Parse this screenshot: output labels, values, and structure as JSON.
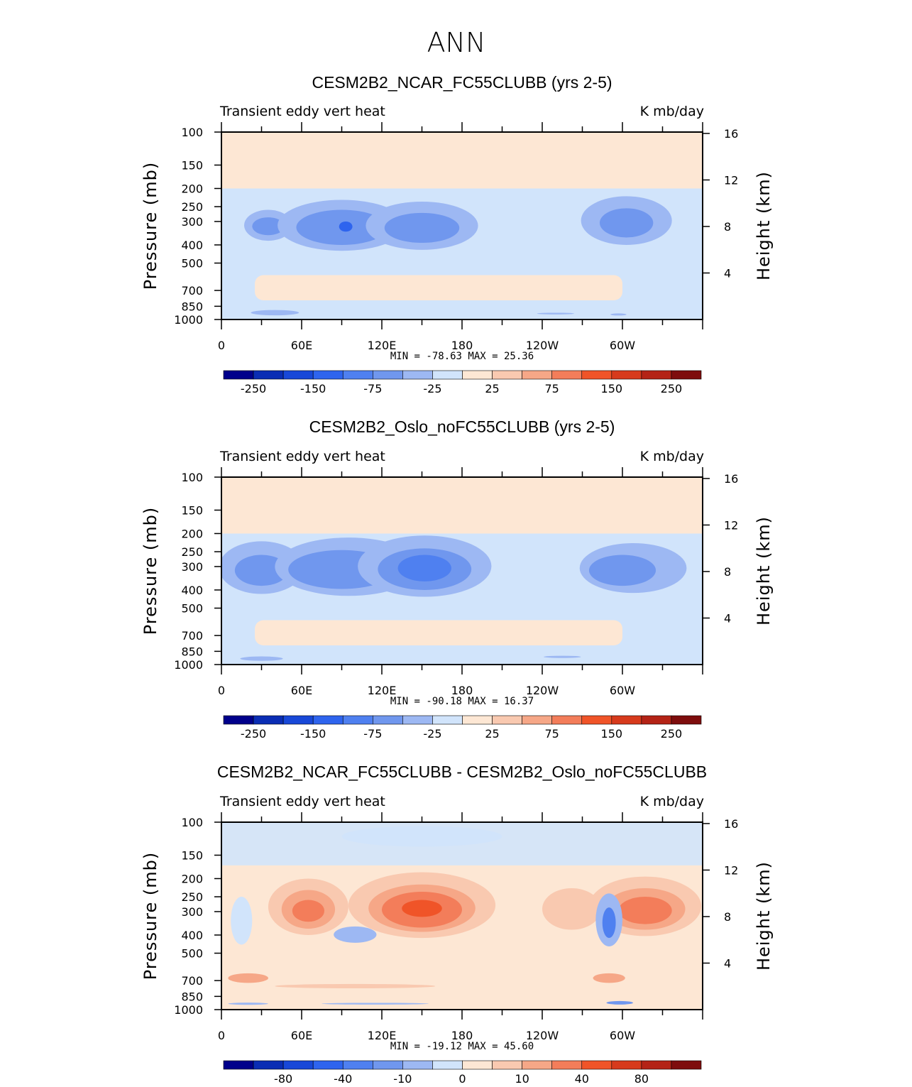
{
  "figure_title": "ANN",
  "colors": {
    "scale": [
      "#00008b",
      "#0a2db4",
      "#1848d8",
      "#2e64ee",
      "#4f80f0",
      "#7097ee",
      "#9db8f3",
      "#d1e4fb",
      "#fde7d4",
      "#f9c9b0",
      "#f6a787",
      "#f37d5a",
      "#f05428",
      "#d73a1c",
      "#b42316",
      "#7e0d0d"
    ]
  },
  "chart_data": [
    {
      "type": "contour",
      "title": "CESM2B2_NCAR_FC55CLUBB (yrs 2-5)",
      "left_label": "Transient eddy vert heat",
      "right_label": "K mb/day",
      "ylabel": "Pressure (mb)",
      "ylabel2": "Height (km)",
      "x_ticks": [
        "0",
        "60E",
        "120E",
        "180",
        "120W",
        "60W"
      ],
      "x_range": [
        0,
        360
      ],
      "y_ticks": [
        "100",
        "150",
        "200",
        "250",
        "300",
        "400",
        "500",
        "700",
        "850",
        "1000"
      ],
      "y_range": [
        1000,
        100
      ],
      "height_ticks": [
        "16",
        "12",
        "8",
        "4"
      ],
      "stats": "MIN = -78.63   MAX =  25.36",
      "colorbar_labels": [
        "-250",
        "-150",
        "-75",
        "-25",
        "25",
        "75",
        "150",
        "250"
      ],
      "levels_approx": [
        -250,
        -200,
        -150,
        -100,
        -75,
        -50,
        -25,
        0,
        25,
        50,
        75,
        100,
        150,
        200,
        250
      ],
      "background_level": 8,
      "features": [
        {
          "lon": 35,
          "p": 320,
          "w": 28,
          "h": 190,
          "level": 7
        },
        {
          "lon": 35,
          "p": 320,
          "w": 18,
          "h": 120,
          "level": 6
        },
        {
          "lon": 35,
          "p": 320,
          "w": 12,
          "h": 70,
          "level": 5
        },
        {
          "lon": 90,
          "p": 330,
          "w": 48,
          "h": 200,
          "level": 6
        },
        {
          "lon": 90,
          "p": 330,
          "w": 34,
          "h": 140,
          "level": 5
        },
        {
          "lon": 93,
          "p": 320,
          "w": 5,
          "h": 40,
          "level": 3
        },
        {
          "lon": 150,
          "p": 330,
          "w": 42,
          "h": 190,
          "level": 6
        },
        {
          "lon": 150,
          "p": 330,
          "w": 28,
          "h": 120,
          "level": 5
        },
        {
          "lon": 303,
          "p": 310,
          "w": 34,
          "h": 180,
          "level": 6
        },
        {
          "lon": 303,
          "p": 310,
          "w": 20,
          "h": 110,
          "level": 5
        },
        {
          "lon": 40,
          "p": 920,
          "w": 18,
          "h": 60,
          "level": 6
        },
        {
          "lon": 250,
          "p": 930,
          "w": 14,
          "h": 20,
          "level": 6
        },
        {
          "lon": 297,
          "p": 940,
          "w": 6,
          "h": 25,
          "level": 6
        }
      ]
    },
    {
      "type": "contour",
      "title": "CESM2B2_Oslo_noFC55CLUBB (yrs 2-5)",
      "left_label": "Transient eddy vert heat",
      "right_label": "K mb/day",
      "ylabel": "Pressure (mb)",
      "ylabel2": "Height (km)",
      "x_ticks": [
        "0",
        "60E",
        "120E",
        "180",
        "120W",
        "60W"
      ],
      "x_range": [
        0,
        360
      ],
      "y_ticks": [
        "100",
        "150",
        "200",
        "250",
        "300",
        "400",
        "500",
        "700",
        "850",
        "1000"
      ],
      "y_range": [
        1000,
        100
      ],
      "height_ticks": [
        "16",
        "12",
        "8",
        "4"
      ],
      "stats": "MIN = -90.18   MAX =  16.37",
      "colorbar_labels": [
        "-250",
        "-150",
        "-75",
        "-25",
        "25",
        "75",
        "150",
        "250"
      ],
      "levels_approx": [
        -250,
        -200,
        -150,
        -100,
        -75,
        -50,
        -25,
        0,
        25,
        50,
        75,
        100,
        150,
        200,
        250
      ],
      "background_level": 8,
      "features": [
        {
          "lon": 30,
          "p": 320,
          "w": 32,
          "h": 200,
          "level": 6
        },
        {
          "lon": 30,
          "p": 320,
          "w": 20,
          "h": 120,
          "level": 5
        },
        {
          "lon": 95,
          "p": 320,
          "w": 55,
          "h": 220,
          "level": 6
        },
        {
          "lon": 90,
          "p": 320,
          "w": 40,
          "h": 150,
          "level": 5
        },
        {
          "lon": 152,
          "p": 320,
          "w": 50,
          "h": 230,
          "level": 6
        },
        {
          "lon": 152,
          "p": 320,
          "w": 35,
          "h": 160,
          "level": 5
        },
        {
          "lon": 152,
          "p": 310,
          "w": 20,
          "h": 100,
          "level": 4
        },
        {
          "lon": 308,
          "p": 320,
          "w": 40,
          "h": 190,
          "level": 6
        },
        {
          "lon": 300,
          "p": 320,
          "w": 25,
          "h": 120,
          "level": 5
        },
        {
          "lon": 30,
          "p": 930,
          "w": 16,
          "h": 50,
          "level": 6
        },
        {
          "lon": 255,
          "p": 910,
          "w": 14,
          "h": 25,
          "level": 6
        }
      ]
    },
    {
      "type": "contour",
      "title": "CESM2B2_NCAR_FC55CLUBB - CESM2B2_Oslo_noFC55CLUBB",
      "left_label": "Transient eddy vert heat",
      "right_label": "K mb/day",
      "ylabel": "Pressure (mb)",
      "ylabel2": "Height (km)",
      "x_ticks": [
        "0",
        "60E",
        "120E",
        "180",
        "120W",
        "60W"
      ],
      "x_range": [
        0,
        360
      ],
      "y_ticks": [
        "100",
        "150",
        "200",
        "250",
        "300",
        "400",
        "500",
        "700",
        "850",
        "1000"
      ],
      "y_range": [
        1000,
        100
      ],
      "height_ticks": [
        "16",
        "12",
        "8",
        "4"
      ],
      "stats": "MIN = -19.12   MAX =  45.60",
      "colorbar_labels": [
        "-80",
        "-40",
        "-10",
        "0",
        "10",
        "40",
        "80"
      ],
      "levels_approx": [
        -100,
        -80,
        -60,
        -40,
        -20,
        -10,
        -5,
        0,
        5,
        10,
        20,
        40,
        60,
        80,
        100
      ],
      "background_level": 8,
      "features": [
        {
          "lon": 150,
          "p": 300,
          "w": 55,
          "h": 230,
          "level": 9
        },
        {
          "lon": 150,
          "p": 300,
          "w": 40,
          "h": 170,
          "level": 10
        },
        {
          "lon": 150,
          "p": 300,
          "w": 30,
          "h": 130,
          "level": 11
        },
        {
          "lon": 150,
          "p": 290,
          "w": 15,
          "h": 60,
          "level": 12
        },
        {
          "lon": 65,
          "p": 300,
          "w": 30,
          "h": 200,
          "level": 9
        },
        {
          "lon": 65,
          "p": 300,
          "w": 20,
          "h": 140,
          "level": 10
        },
        {
          "lon": 65,
          "p": 300,
          "w": 12,
          "h": 80,
          "level": 11
        },
        {
          "lon": 317,
          "p": 300,
          "w": 42,
          "h": 210,
          "level": 9
        },
        {
          "lon": 317,
          "p": 300,
          "w": 30,
          "h": 150,
          "level": 10
        },
        {
          "lon": 317,
          "p": 300,
          "w": 20,
          "h": 100,
          "level": 11
        },
        {
          "lon": 262,
          "p": 300,
          "w": 22,
          "h": 150,
          "level": 9
        },
        {
          "lon": 100,
          "p": 400,
          "w": 16,
          "h": 80,
          "level": 6
        },
        {
          "lon": 290,
          "p": 350,
          "w": 10,
          "h": 220,
          "level": 6
        },
        {
          "lon": 290,
          "p": 350,
          "w": 5,
          "h": 130,
          "level": 4
        },
        {
          "lon": 15,
          "p": 350,
          "w": 8,
          "h": 200,
          "level": 7
        },
        {
          "lon": 150,
          "p": 120,
          "w": 60,
          "h": 30,
          "level": 7
        },
        {
          "lon": 20,
          "p": 680,
          "w": 15,
          "h": 80,
          "level": 10
        },
        {
          "lon": 290,
          "p": 680,
          "w": 12,
          "h": 80,
          "level": 10
        },
        {
          "lon": 100,
          "p": 750,
          "w": 60,
          "h": 40,
          "level": 9
        },
        {
          "lon": 115,
          "p": 930,
          "w": 40,
          "h": 20,
          "level": 6
        },
        {
          "lon": 20,
          "p": 930,
          "w": 15,
          "h": 25,
          "level": 6
        },
        {
          "lon": 298,
          "p": 920,
          "w": 10,
          "h": 40,
          "level": 5
        }
      ]
    }
  ]
}
